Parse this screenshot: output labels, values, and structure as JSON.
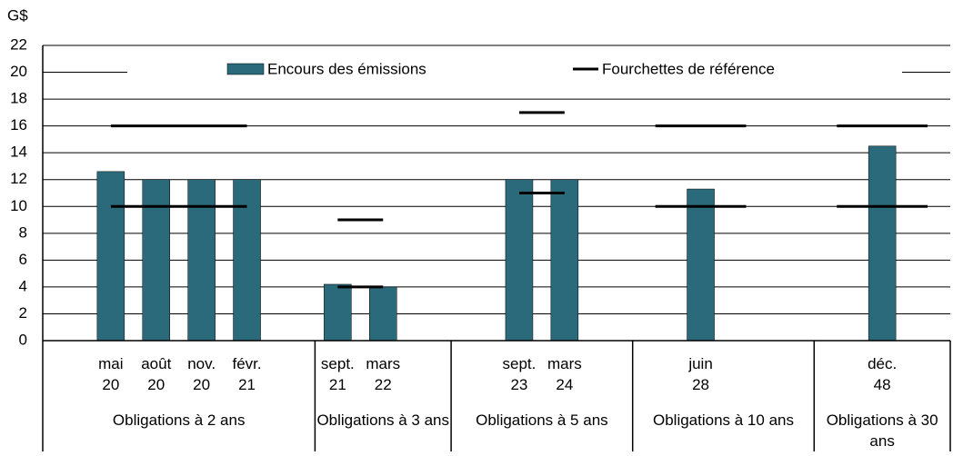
{
  "chart_data": {
    "type": "bar",
    "y_unit": "G$",
    "categories": [
      null,
      "mai 20",
      "août 20",
      "nov. 20",
      "févr. 21",
      null,
      "sept. 21",
      "mars 22",
      null,
      null,
      "sept. 23",
      "mars 24",
      null,
      null,
      "juin 28",
      null,
      null,
      null,
      "déc. 48",
      null
    ],
    "series": [
      {
        "name": "Encours des émissions",
        "color": "#2b6a7b",
        "values": [
          null,
          12.6,
          12,
          12,
          12,
          null,
          4.2,
          4,
          null,
          null,
          12,
          12,
          null,
          null,
          11.3,
          null,
          null,
          null,
          14.5,
          null
        ]
      }
    ],
    "reference_ranges": {
      "name": "Fourchettes de référence",
      "color": "#000000"
    },
    "groups": [
      {
        "label": "Obligations à 2 ans",
        "count": 6,
        "range": [
          10,
          16
        ]
      },
      {
        "label": "Obligations à 3 ans",
        "count": 3,
        "range": [
          4,
          9
        ]
      },
      {
        "label": "Obligations à 5 ans",
        "count": 4,
        "range": [
          11,
          17
        ]
      },
      {
        "label": "Obligations à 10 ans",
        "count": 4,
        "range": [
          10,
          16
        ]
      },
      {
        "label": "Obligations à 30 ans",
        "count": 3,
        "range": [
          10,
          16
        ]
      }
    ],
    "ylim": [
      0,
      22
    ],
    "yticks": [
      0,
      2,
      4,
      6,
      8,
      10,
      12,
      14,
      16,
      18,
      20,
      22
    ],
    "grid": true
  }
}
